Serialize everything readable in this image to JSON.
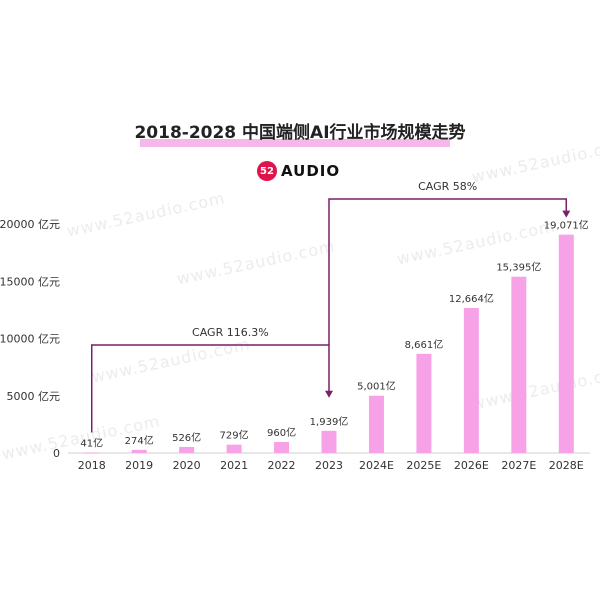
{
  "title": "2018-2028 中国端侧AI行业市场规模走势",
  "logo": {
    "mark": "52",
    "text": "AUDIO"
  },
  "watermark": "www.52audio.com",
  "chart_data": {
    "type": "bar",
    "categories": [
      "2018",
      "2019",
      "2020",
      "2021",
      "2022",
      "2023",
      "2024E",
      "2025E",
      "2026E",
      "2027E",
      "2028E"
    ],
    "values": [
      41,
      274,
      526,
      729,
      960,
      1939,
      5001,
      8661,
      12664,
      15395,
      19071
    ],
    "value_labels": [
      "41亿",
      "274亿",
      "526亿",
      "729亿",
      "960亿",
      "1,939亿",
      "5,001亿",
      "8,661亿",
      "12,664亿",
      "15,395亿",
      "19,071亿"
    ],
    "ylim": [
      0,
      20000
    ],
    "yticks": [
      0,
      5000,
      10000,
      15000,
      20000
    ],
    "ytick_labels": [
      "0",
      "5000 亿元",
      "10000 亿元",
      "15000 亿元",
      "20000 亿元"
    ],
    "grid": false,
    "bar_color": "#f7a1e6",
    "annotations": [
      {
        "label": "CAGR 116.3%",
        "from": "2018",
        "to": "2023",
        "color": "#7a1f6a"
      },
      {
        "label": "CAGR 58%",
        "from": "2023",
        "to": "2028E",
        "color": "#7a1f6a"
      }
    ]
  }
}
